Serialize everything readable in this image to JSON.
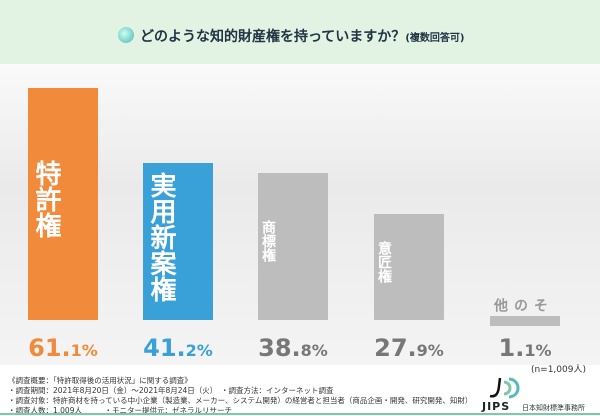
{
  "header": {
    "title": "どのような知的財産権を持っていますか？",
    "note": "(複数回答可)"
  },
  "chart_data": {
    "type": "bar",
    "title": "どのような知的財産権を持っていますか？(複数回答可)",
    "categories": [
      "特許権",
      "実用新案権",
      "商標権",
      "意匠権",
      "その他"
    ],
    "values": [
      61.1,
      41.2,
      38.8,
      27.9,
      1.1
    ],
    "value_int": [
      "61.",
      "41.",
      "38.",
      "27.",
      "1."
    ],
    "value_dec": [
      "1%",
      "2%",
      "8%",
      "9%",
      "1%"
    ],
    "colors": [
      "#f28a3c",
      "#3aa0d8",
      "#bdbdbd",
      "#bdbdbd",
      "#bdbdbd"
    ],
    "value_colors": [
      "#f28a3c",
      "#3aa0d8",
      "#777777",
      "#777777",
      "#777777"
    ],
    "ylim": [
      0,
      65
    ],
    "sample": "(n=1,009人)"
  },
  "notes": [
    "《調査概要：「特許取得後の活用状況」に関する調査》",
    "・調査期間：2021年8月20日（金）〜2021年8月24日（火）　・調査方法：インターネット調査",
    "・調査対象：特許商材を持っている中小企業（製造業、メーカー、システム開発）の経営者と担当者（商品企画・開発、研究開発、知財）",
    "・調査人数：1,009人　　　・モニター提供元：ゼネラルリサーチ"
  ],
  "logo": {
    "text": "JIPS",
    "org": "日本知財標準事務所"
  }
}
